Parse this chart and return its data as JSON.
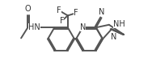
{
  "bg_color": "#ffffff",
  "line_color": "#555555",
  "text_color": "#333333",
  "linewidth": 1.4,
  "fontsize": 6.5,
  "figwidth": 1.88,
  "figheight": 0.97,
  "dpi": 100,
  "xlim": [
    0.0,
    9.5
  ],
  "ylim": [
    0.0,
    5.0
  ]
}
